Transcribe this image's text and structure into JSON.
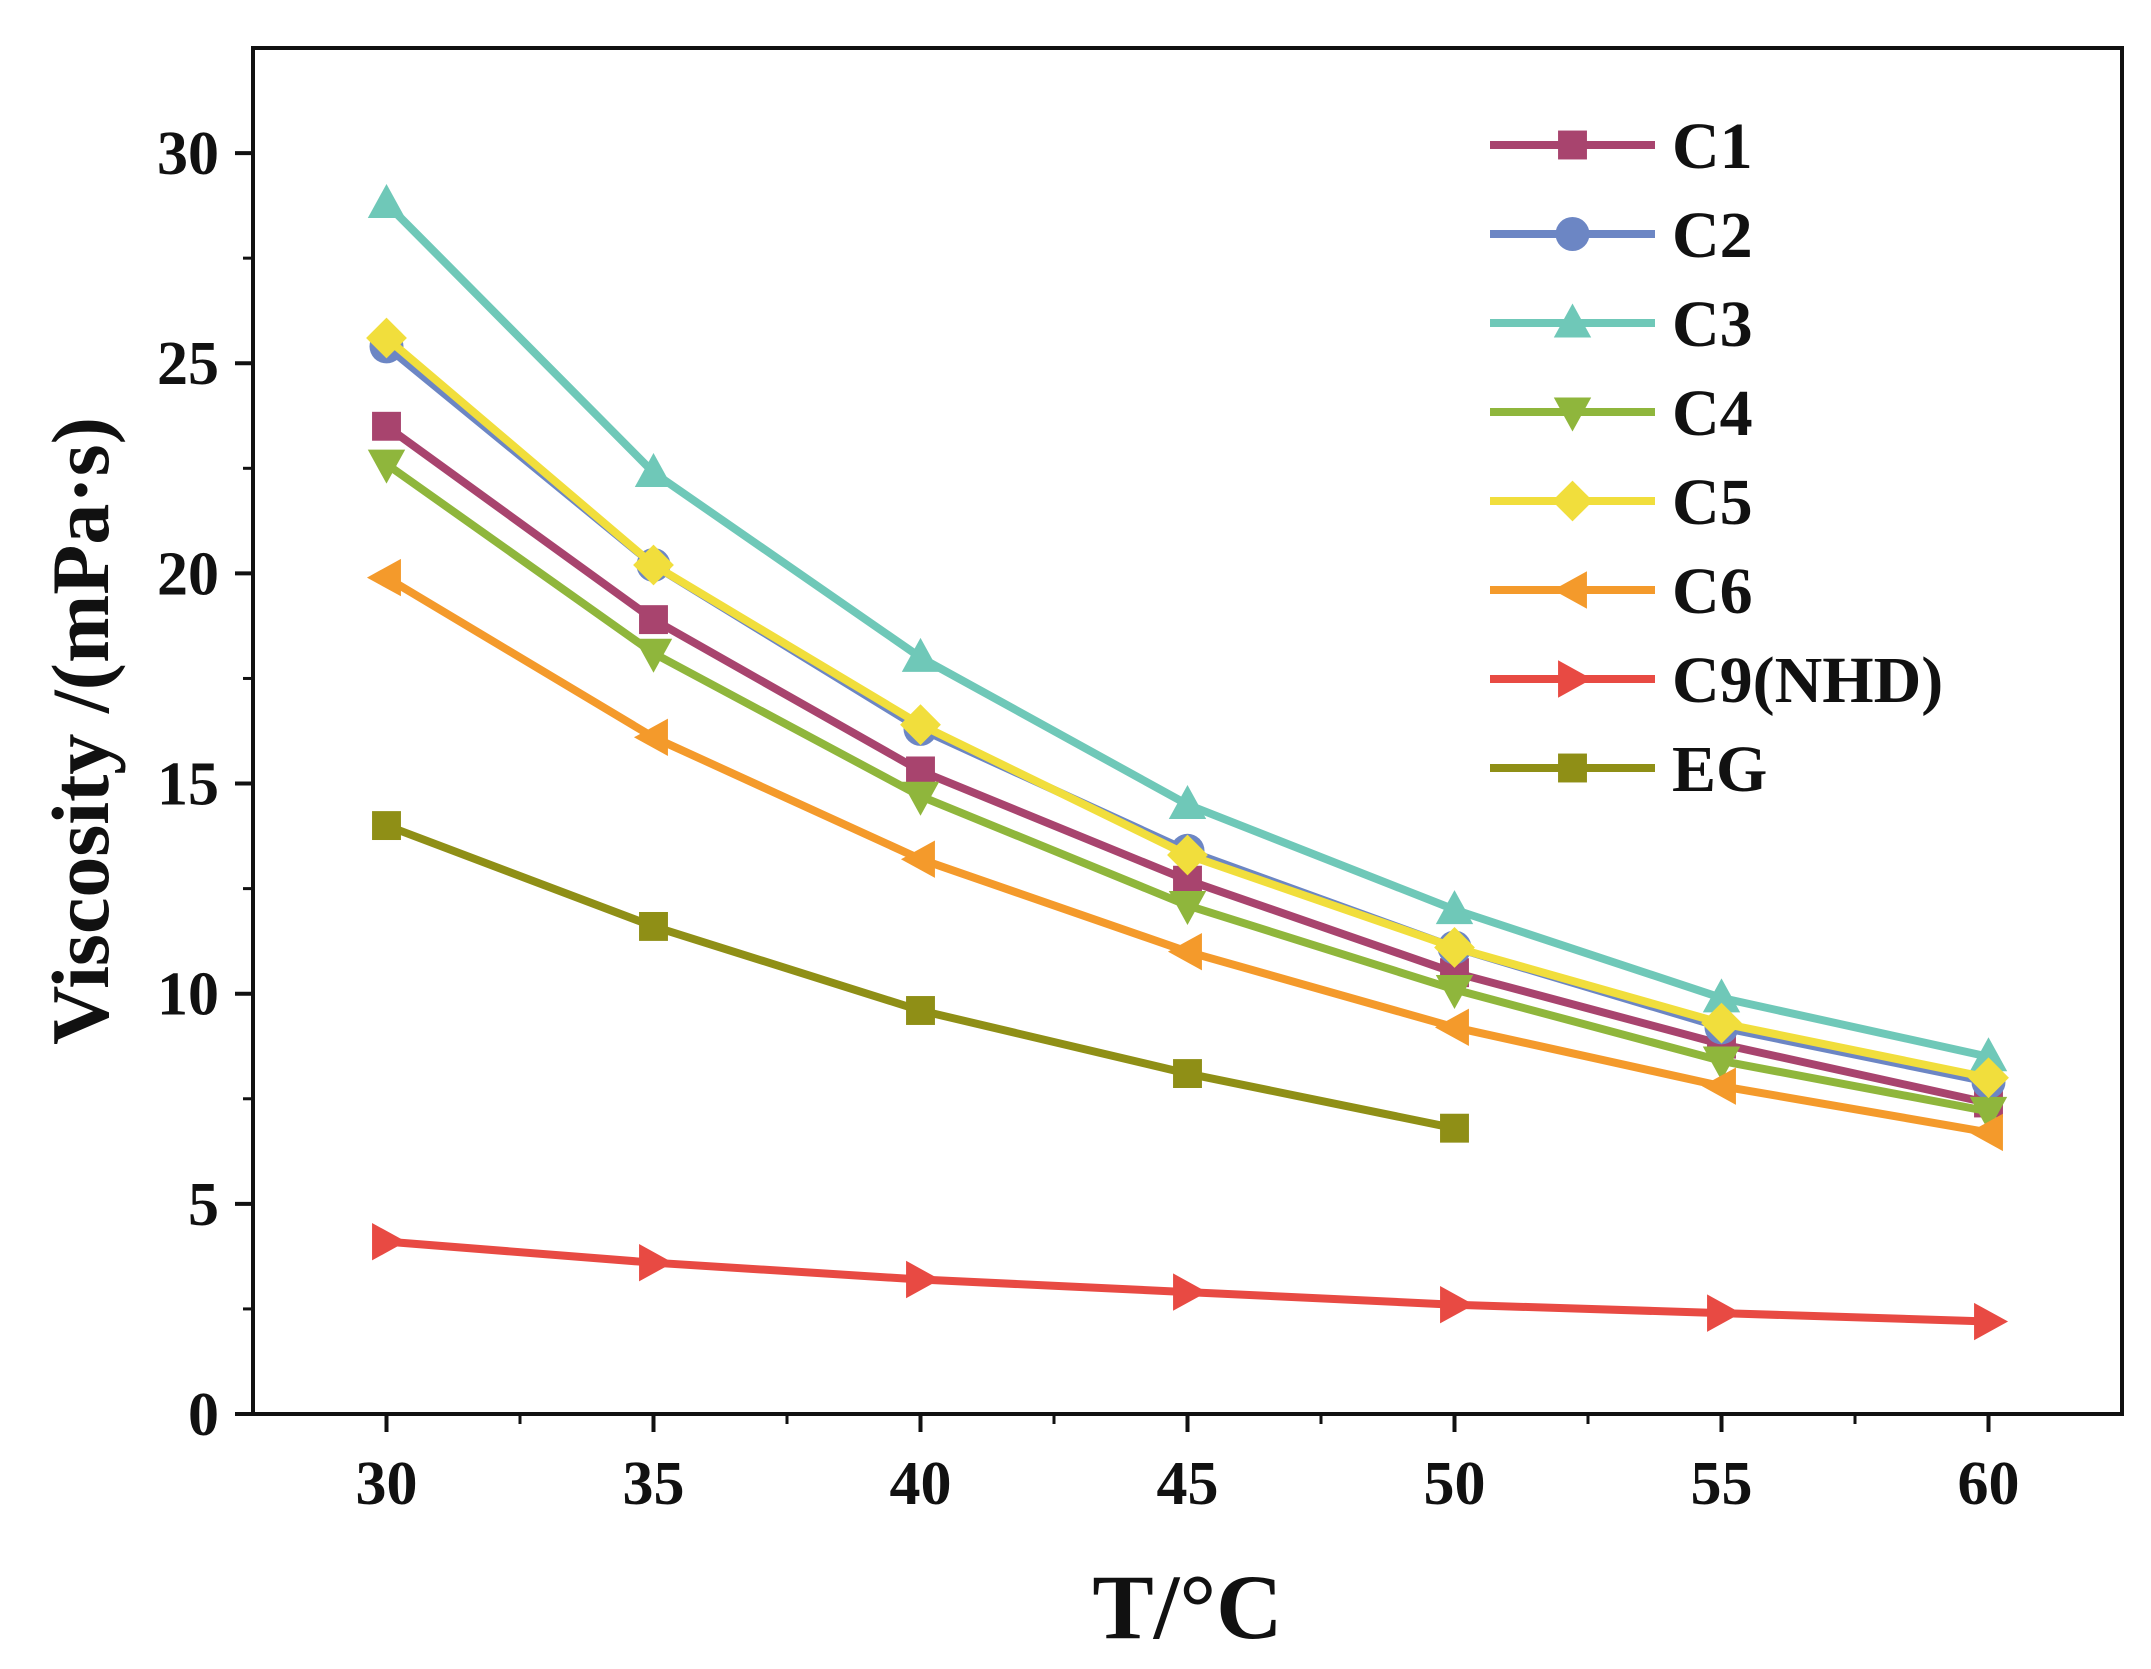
{
  "chart_data": {
    "type": "line",
    "xlabel": "T/°C",
    "ylabel": "Viscosity /(mPa·s)",
    "xlim": [
      27.5,
      62.5
    ],
    "ylim": [
      0,
      32.5
    ],
    "x_ticks": [
      30,
      35,
      40,
      45,
      50,
      55,
      60
    ],
    "y_ticks": [
      0,
      5,
      10,
      15,
      20,
      25,
      30
    ],
    "grid": false,
    "legend_position": "top-right",
    "series": [
      {
        "name": "C1",
        "marker": "square",
        "color": "#a8446e",
        "x": [
          30,
          35,
          40,
          45,
          50,
          55,
          60
        ],
        "values": [
          23.5,
          18.9,
          15.3,
          12.7,
          10.5,
          8.8,
          7.4
        ]
      },
      {
        "name": "C2",
        "marker": "circle",
        "color": "#6c86c4",
        "x": [
          30,
          35,
          40,
          45,
          50,
          55,
          60
        ],
        "values": [
          25.4,
          20.2,
          16.3,
          13.4,
          11.1,
          9.2,
          7.9
        ]
      },
      {
        "name": "C3",
        "marker": "triangle-up",
        "color": "#6fc8b8",
        "x": [
          30,
          35,
          40,
          45,
          50,
          55,
          60
        ],
        "values": [
          28.8,
          22.4,
          18.0,
          14.5,
          12.0,
          9.9,
          8.5
        ]
      },
      {
        "name": "C4",
        "marker": "triangle-down",
        "color": "#8fb63c",
        "x": [
          30,
          35,
          40,
          45,
          50,
          55,
          60
        ],
        "values": [
          22.6,
          18.1,
          14.7,
          12.1,
          10.1,
          8.4,
          7.2
        ]
      },
      {
        "name": "C5",
        "marker": "diamond",
        "color": "#f1de3c",
        "x": [
          30,
          35,
          40,
          45,
          50,
          55,
          60
        ],
        "values": [
          25.6,
          20.2,
          16.4,
          13.3,
          11.1,
          9.3,
          8.0
        ]
      },
      {
        "name": "C6",
        "marker": "triangle-left",
        "color": "#f49a2b",
        "x": [
          30,
          35,
          40,
          45,
          50,
          55,
          60
        ],
        "values": [
          19.9,
          16.1,
          13.2,
          11.0,
          9.2,
          7.8,
          6.7
        ]
      },
      {
        "name": "C9(NHD)",
        "marker": "triangle-right",
        "color": "#e84a43",
        "x": [
          30,
          35,
          40,
          45,
          50,
          55,
          60
        ],
        "values": [
          4.1,
          3.6,
          3.2,
          2.9,
          2.6,
          2.4,
          2.2
        ]
      },
      {
        "name": "EG",
        "marker": "square",
        "color": "#8f8f16",
        "x": [
          30,
          35,
          40,
          45,
          50
        ],
        "values": [
          14.0,
          11.6,
          9.6,
          8.1,
          6.8
        ]
      }
    ]
  }
}
